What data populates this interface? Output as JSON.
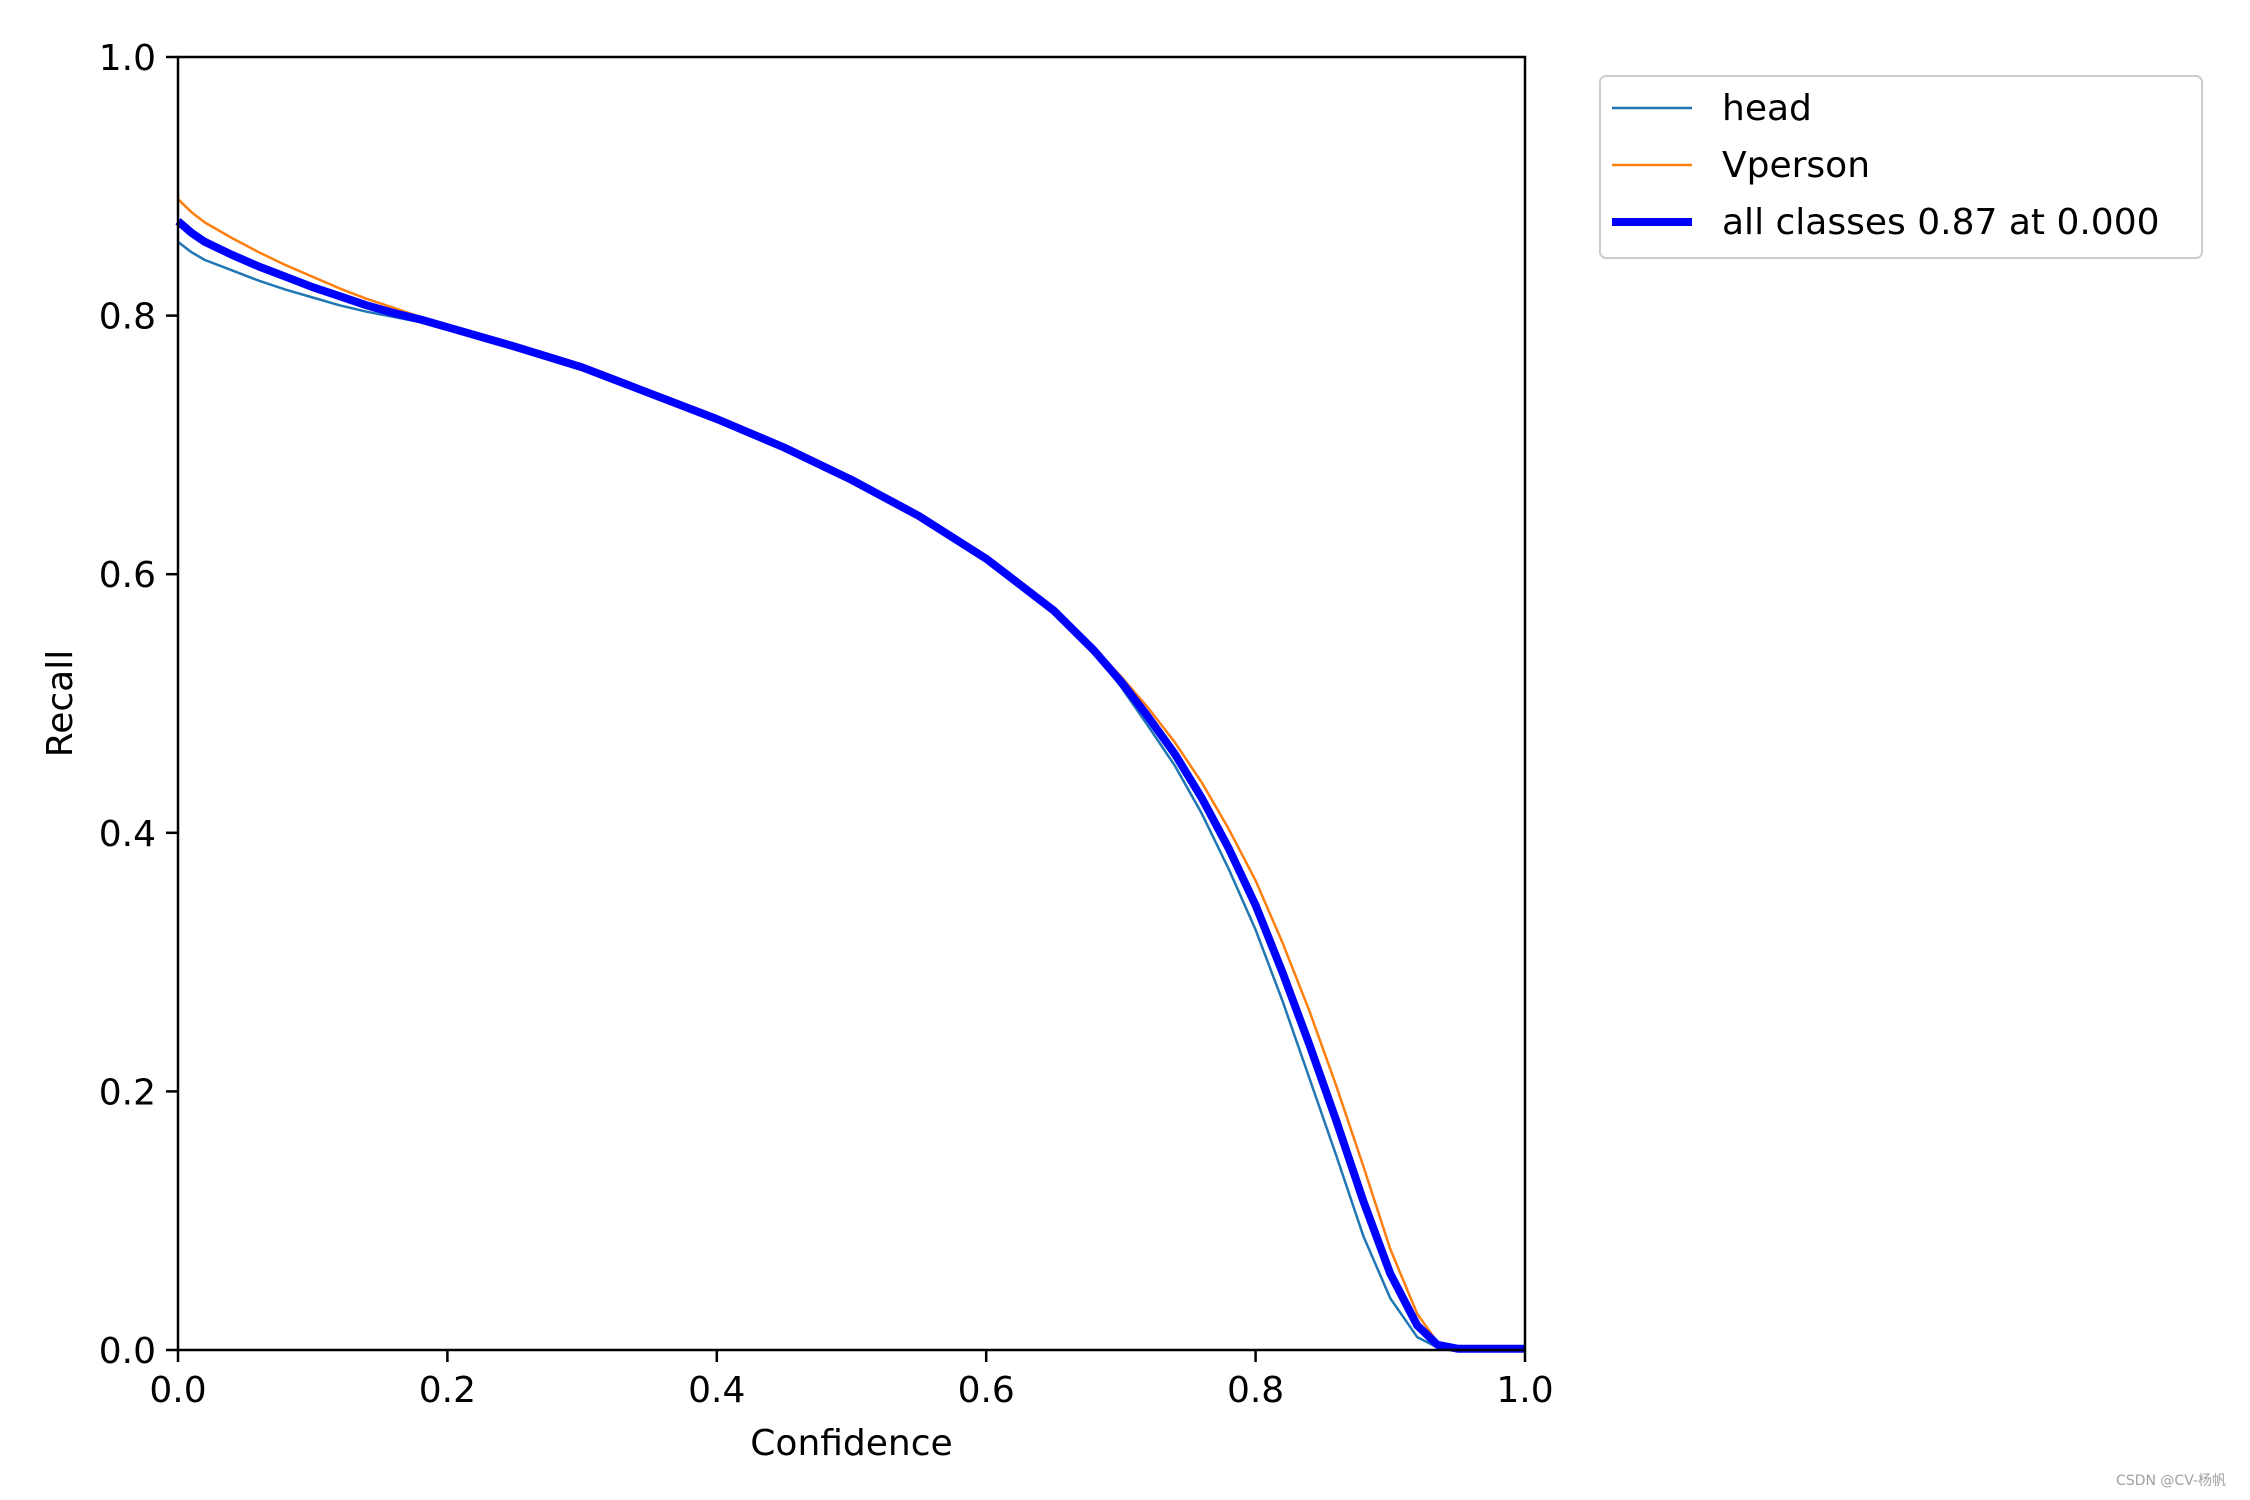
{
  "chart_data": {
    "type": "line",
    "title": "",
    "xlabel": "Confidence",
    "ylabel": "Recall",
    "xlim": [
      0.0,
      1.0
    ],
    "ylim": [
      0.0,
      1.0
    ],
    "x_ticks": [
      "0.0",
      "0.2",
      "0.4",
      "0.6",
      "0.8",
      "1.0"
    ],
    "y_ticks": [
      "0.0",
      "0.2",
      "0.4",
      "0.6",
      "0.8",
      "1.0"
    ],
    "grid": false,
    "legend_position": "outside-top-right",
    "series": [
      {
        "name": "head",
        "color": "#1f77b4",
        "points": [
          [
            0.0,
            0.857
          ],
          [
            0.01,
            0.849
          ],
          [
            0.02,
            0.843
          ],
          [
            0.04,
            0.835
          ],
          [
            0.06,
            0.827
          ],
          [
            0.08,
            0.82
          ],
          [
            0.1,
            0.814
          ],
          [
            0.12,
            0.808
          ],
          [
            0.14,
            0.803
          ],
          [
            0.16,
            0.799
          ],
          [
            0.18,
            0.795
          ],
          [
            0.2,
            0.79
          ],
          [
            0.25,
            0.776
          ],
          [
            0.3,
            0.76
          ],
          [
            0.35,
            0.74
          ],
          [
            0.4,
            0.72
          ],
          [
            0.45,
            0.698
          ],
          [
            0.5,
            0.673
          ],
          [
            0.55,
            0.645
          ],
          [
            0.6,
            0.612
          ],
          [
            0.65,
            0.572
          ],
          [
            0.68,
            0.54
          ],
          [
            0.7,
            0.513
          ],
          [
            0.72,
            0.483
          ],
          [
            0.74,
            0.452
          ],
          [
            0.76,
            0.415
          ],
          [
            0.78,
            0.372
          ],
          [
            0.8,
            0.325
          ],
          [
            0.82,
            0.27
          ],
          [
            0.84,
            0.21
          ],
          [
            0.86,
            0.15
          ],
          [
            0.88,
            0.088
          ],
          [
            0.9,
            0.04
          ],
          [
            0.92,
            0.01
          ],
          [
            0.935,
            0.002
          ],
          [
            0.95,
            0.001
          ],
          [
            1.0,
            0.001
          ]
        ]
      },
      {
        "name": "Vperson",
        "color": "#ff7f0e",
        "points": [
          [
            0.0,
            0.89
          ],
          [
            0.01,
            0.88
          ],
          [
            0.02,
            0.872
          ],
          [
            0.04,
            0.86
          ],
          [
            0.06,
            0.849
          ],
          [
            0.08,
            0.839
          ],
          [
            0.1,
            0.83
          ],
          [
            0.12,
            0.821
          ],
          [
            0.14,
            0.813
          ],
          [
            0.16,
            0.806
          ],
          [
            0.18,
            0.799
          ],
          [
            0.2,
            0.792
          ],
          [
            0.25,
            0.776
          ],
          [
            0.3,
            0.76
          ],
          [
            0.35,
            0.74
          ],
          [
            0.4,
            0.72
          ],
          [
            0.45,
            0.698
          ],
          [
            0.5,
            0.673
          ],
          [
            0.55,
            0.645
          ],
          [
            0.6,
            0.612
          ],
          [
            0.65,
            0.572
          ],
          [
            0.68,
            0.543
          ],
          [
            0.7,
            0.521
          ],
          [
            0.72,
            0.497
          ],
          [
            0.74,
            0.47
          ],
          [
            0.76,
            0.439
          ],
          [
            0.78,
            0.403
          ],
          [
            0.8,
            0.363
          ],
          [
            0.82,
            0.315
          ],
          [
            0.84,
            0.262
          ],
          [
            0.86,
            0.204
          ],
          [
            0.88,
            0.142
          ],
          [
            0.9,
            0.078
          ],
          [
            0.92,
            0.028
          ],
          [
            0.935,
            0.006
          ],
          [
            0.95,
            0.001
          ],
          [
            1.0,
            0.001
          ]
        ]
      },
      {
        "name": "all classes 0.87 at 0.000",
        "color": "#0000ff",
        "points": [
          [
            0.0,
            0.873
          ],
          [
            0.01,
            0.864
          ],
          [
            0.02,
            0.857
          ],
          [
            0.04,
            0.847
          ],
          [
            0.06,
            0.838
          ],
          [
            0.08,
            0.83
          ],
          [
            0.1,
            0.822
          ],
          [
            0.12,
            0.815
          ],
          [
            0.14,
            0.808
          ],
          [
            0.16,
            0.802
          ],
          [
            0.18,
            0.797
          ],
          [
            0.2,
            0.791
          ],
          [
            0.25,
            0.776
          ],
          [
            0.3,
            0.76
          ],
          [
            0.35,
            0.74
          ],
          [
            0.4,
            0.72
          ],
          [
            0.45,
            0.698
          ],
          [
            0.5,
            0.673
          ],
          [
            0.55,
            0.645
          ],
          [
            0.6,
            0.612
          ],
          [
            0.65,
            0.572
          ],
          [
            0.68,
            0.541
          ],
          [
            0.7,
            0.517
          ],
          [
            0.72,
            0.49
          ],
          [
            0.74,
            0.461
          ],
          [
            0.76,
            0.427
          ],
          [
            0.78,
            0.388
          ],
          [
            0.8,
            0.344
          ],
          [
            0.82,
            0.292
          ],
          [
            0.84,
            0.236
          ],
          [
            0.86,
            0.177
          ],
          [
            0.88,
            0.115
          ],
          [
            0.9,
            0.059
          ],
          [
            0.92,
            0.019
          ],
          [
            0.935,
            0.004
          ],
          [
            0.95,
            0.001
          ],
          [
            1.0,
            0.001
          ]
        ]
      }
    ]
  },
  "watermark": "CSDN @CV-杨帆"
}
